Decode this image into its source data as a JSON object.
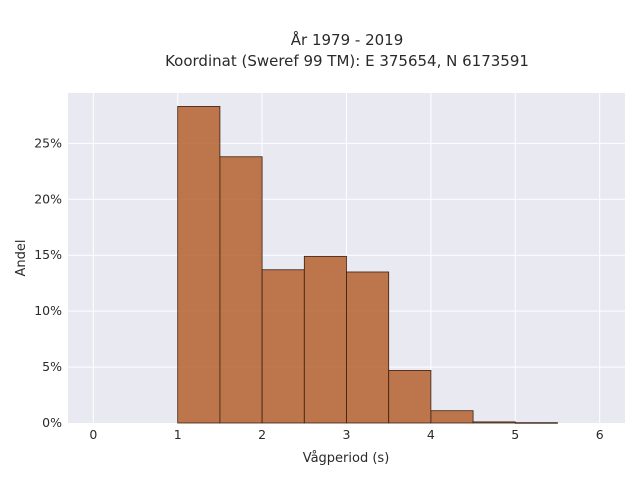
{
  "chart_data": {
    "type": "bar",
    "title_line1": "År 1979 - 2019",
    "title_line2": "Koordinat (Sweref 99 TM): E 375654, N 6173591",
    "xlabel": "Vågperiod (s)",
    "ylabel": "Andel",
    "xlim": [
      -0.3,
      6.3
    ],
    "ylim": [
      0,
      0.295
    ],
    "x_ticks": [
      0,
      1,
      2,
      3,
      4,
      5,
      6
    ],
    "x_tick_labels": [
      "0",
      "1",
      "2",
      "3",
      "4",
      "5",
      "6"
    ],
    "y_ticks": [
      0,
      0.05,
      0.1,
      0.15,
      0.2,
      0.25
    ],
    "y_tick_labels": [
      "0%",
      "5%",
      "10%",
      "15%",
      "20%",
      "25%"
    ],
    "bin_edges": [
      1.0,
      1.5,
      2.0,
      2.5,
      3.0,
      3.5,
      4.0,
      4.5,
      5.0,
      5.5
    ],
    "values": [
      0.283,
      0.238,
      0.137,
      0.149,
      0.135,
      0.047,
      0.011,
      0.001,
      0.0003
    ],
    "grid": true,
    "colors": {
      "plot_bg": "#e9e9f2",
      "bar_fill": "#b5612f",
      "bar_edge": "#3a1f10"
    }
  }
}
